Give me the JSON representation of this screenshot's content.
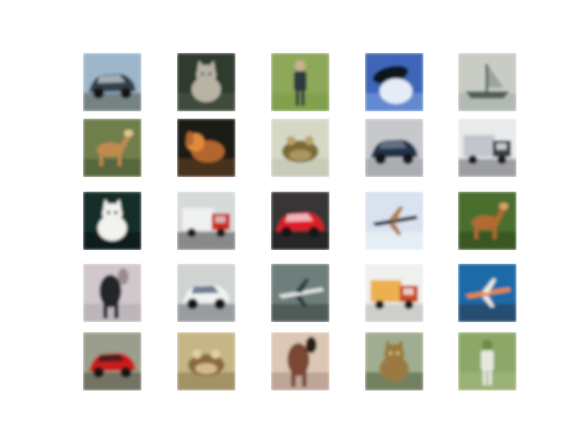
{
  "grid": {
    "rows": 5,
    "cols": 5,
    "background_color": "#ffffff",
    "tiles": [
      {
        "subject": "car",
        "colors": {
          "bg": "#9cb6cc",
          "main": "#33404c",
          "accent": "#d6dde4",
          "ground": "#6f7a74"
        }
      },
      {
        "subject": "cat",
        "colors": {
          "bg": "#2f3a2f",
          "main": "#b9b3a6",
          "accent": "#5f6d8c",
          "ground": "#44503e"
        }
      },
      {
        "subject": "person",
        "colors": {
          "bg": "#8ea85a",
          "main": "#2f3840",
          "accent": "#c8b090",
          "ground": "#7fa04c"
        }
      },
      {
        "subject": "bird",
        "colors": {
          "bg": "#3d66b8",
          "main": "#10181e",
          "accent": "#e4ecf8",
          "ground": "#6a8fd4"
        }
      },
      {
        "subject": "boat",
        "colors": {
          "bg": "#c8ccc4",
          "main": "#4f5e57",
          "accent": "#9aa39c",
          "ground": "#aeb6ae"
        }
      },
      {
        "subject": "deer",
        "colors": {
          "bg": "#6f7e4c",
          "main": "#c08a4e",
          "accent": "#e2c690",
          "ground": "#52623a"
        }
      },
      {
        "subject": "dog",
        "colors": {
          "bg": "#1c1a16",
          "main": "#b2662e",
          "accent": "#e08a3c",
          "ground": "#4e3820"
        }
      },
      {
        "subject": "frog",
        "colors": {
          "bg": "#d6d8c6",
          "main": "#7c6a36",
          "accent": "#b6a46a",
          "ground": "#c4c9b4"
        }
      },
      {
        "subject": "car",
        "colors": {
          "bg": "#c6c8cc",
          "main": "#233048",
          "accent": "#7e8aa0",
          "ground": "#a5a8ac"
        }
      },
      {
        "subject": "truck",
        "colors": {
          "bg": "#e8eaec",
          "main": "#3b3f46",
          "accent": "#c2c6cc",
          "ground": "#8e9096"
        }
      },
      {
        "subject": "cat",
        "colors": {
          "bg": "#122e2c",
          "main": "#f2f2ee",
          "accent": "#4c6a5c",
          "ground": "#0c1c1a"
        }
      },
      {
        "subject": "truck",
        "colors": {
          "bg": "#d6dad8",
          "main": "#cc2a20",
          "accent": "#f0f2f0",
          "ground": "#7a7a7e"
        }
      },
      {
        "subject": "car",
        "colors": {
          "bg": "#383636",
          "main": "#e01c26",
          "accent": "#f6f6f6",
          "ground": "#222222"
        }
      },
      {
        "subject": "airplane",
        "colors": {
          "bg": "#d8e2f0",
          "main": "#2b2f38",
          "accent": "#b07a40",
          "ground": "#e8eef6"
        }
      },
      {
        "subject": "deer",
        "colors": {
          "bg": "#4a6e2e",
          "main": "#b06a32",
          "accent": "#d8a068",
          "ground": "#38531f"
        }
      },
      {
        "subject": "horse",
        "colors": {
          "bg": "#d0c8cc",
          "main": "#20252c",
          "accent": "#9b8c92",
          "ground": "#bab2b6"
        }
      },
      {
        "subject": "car",
        "colors": {
          "bg": "#cfd3d2",
          "main": "#f0f2f2",
          "accent": "#3a4c70",
          "ground": "#8e9496"
        }
      },
      {
        "subject": "airplane",
        "colors": {
          "bg": "#6e7e7a",
          "main": "#dde2e2",
          "accent": "#2e3f3c",
          "ground": "#4a5652"
        }
      },
      {
        "subject": "truck",
        "colors": {
          "bg": "#f0f0ee",
          "main": "#c84c1e",
          "accent": "#ecb050",
          "ground": "#c8c8c4"
        }
      },
      {
        "subject": "airplane",
        "colors": {
          "bg": "#1c6aa8",
          "main": "#f08a16",
          "accent": "#e8e8e4",
          "ground": "#2a4868"
        }
      },
      {
        "subject": "car",
        "colors": {
          "bg": "#9a9e8c",
          "main": "#cc1c1c",
          "accent": "#1e1c1a",
          "ground": "#6c6a5c"
        }
      },
      {
        "subject": "frog",
        "colors": {
          "bg": "#c6b686",
          "main": "#8a6c3a",
          "accent": "#e0d0a4",
          "ground": "#9c8c62"
        }
      },
      {
        "subject": "horse",
        "colors": {
          "bg": "#dcc6b4",
          "main": "#7a4630",
          "accent": "#2a1c16",
          "ground": "#b8a090"
        }
      },
      {
        "subject": "cat",
        "colors": {
          "bg": "#a0ad90",
          "main": "#9a7a40",
          "accent": "#d2bc80",
          "ground": "#6a7858"
        }
      },
      {
        "subject": "person",
        "colors": {
          "bg": "#8ca868",
          "main": "#e6e8e0",
          "accent": "#6e8c46",
          "ground": "#9cb478"
        }
      }
    ]
  }
}
